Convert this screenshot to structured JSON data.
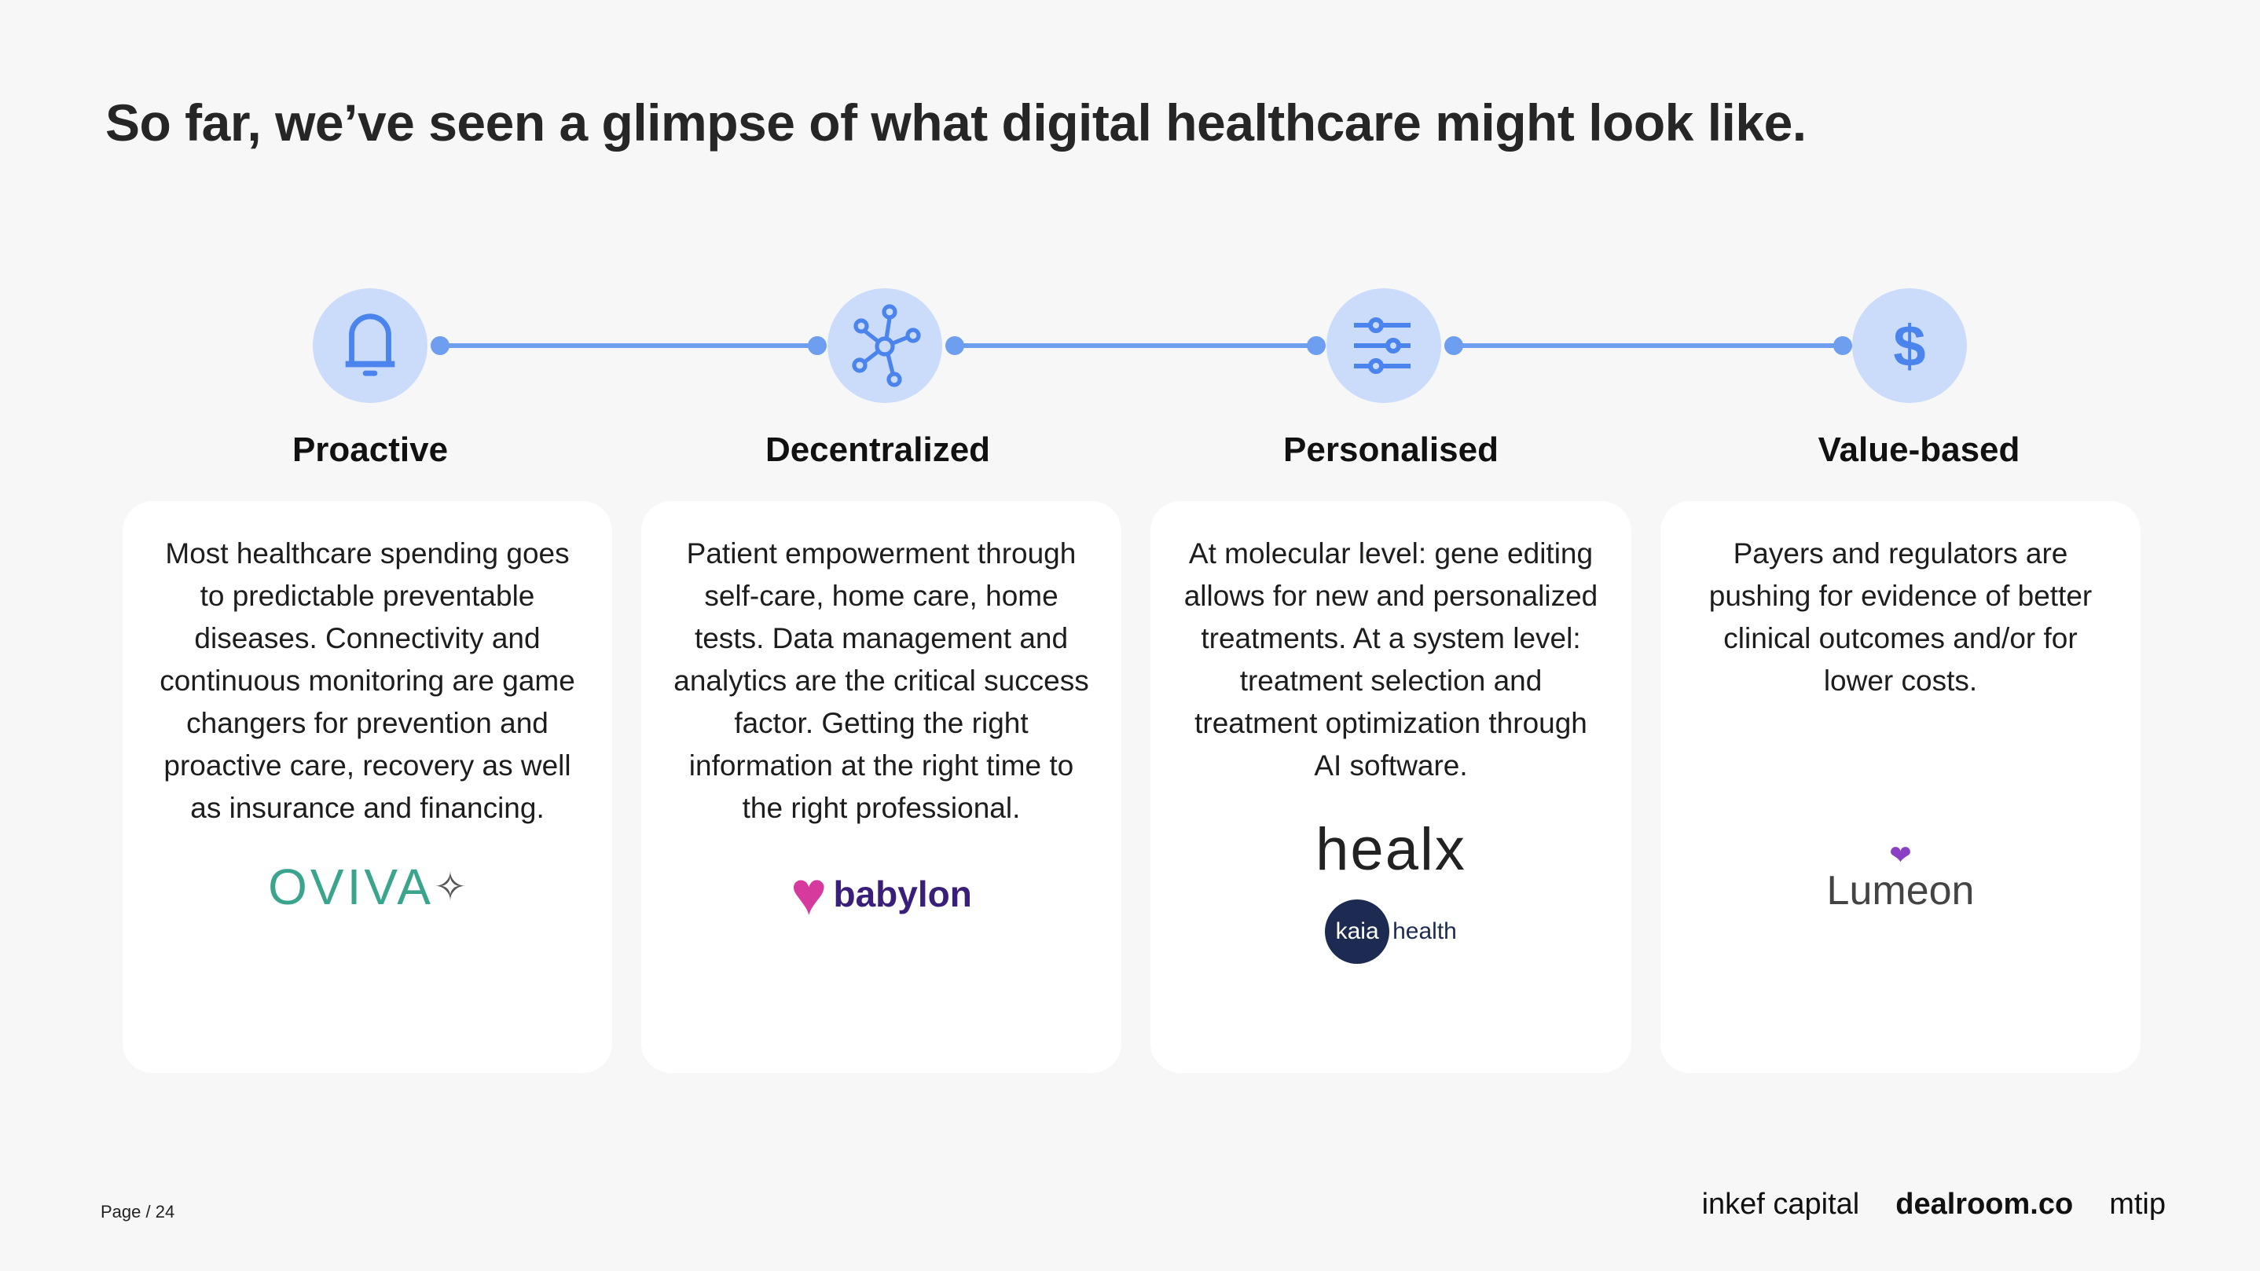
{
  "title": "So far, we’ve seen a glimpse of what digital healthcare might look like.",
  "accent_color": "#5b8def",
  "pillars": [
    {
      "icon": "bell-icon",
      "heading": "Proactive",
      "text": "Most healthcare spending goes to predictable preventable diseases. Connectivity and continuous monitoring are game changers for prevention and proactive care, recovery as well as insurance and financing.",
      "logos": [
        "OVIVA"
      ]
    },
    {
      "icon": "network-icon",
      "heading": "Decentralized",
      "text": "Patient empowerment through self-care, home care, home tests. Data management and analytics are the critical success factor. Getting the right information at the right time to the right professional.",
      "logos": [
        "babylon"
      ]
    },
    {
      "icon": "sliders-icon",
      "heading": "Personalised",
      "text": "At molecular level: gene editing allows for new and personalized treatments. At a system level: treatment selection and treatment optimization through AI software.",
      "logos": [
        "healx",
        "kaia",
        "health"
      ]
    },
    {
      "icon": "dollar-icon",
      "heading": "Value-based",
      "text": "Payers and regulators are pushing for evidence of better clinical outcomes and/or for lower costs.",
      "logos": [
        "Lumeon"
      ]
    }
  ],
  "footer": {
    "page": "Page / 24",
    "brands": [
      "inkef capital",
      "dealroom.co",
      "mtip"
    ]
  }
}
